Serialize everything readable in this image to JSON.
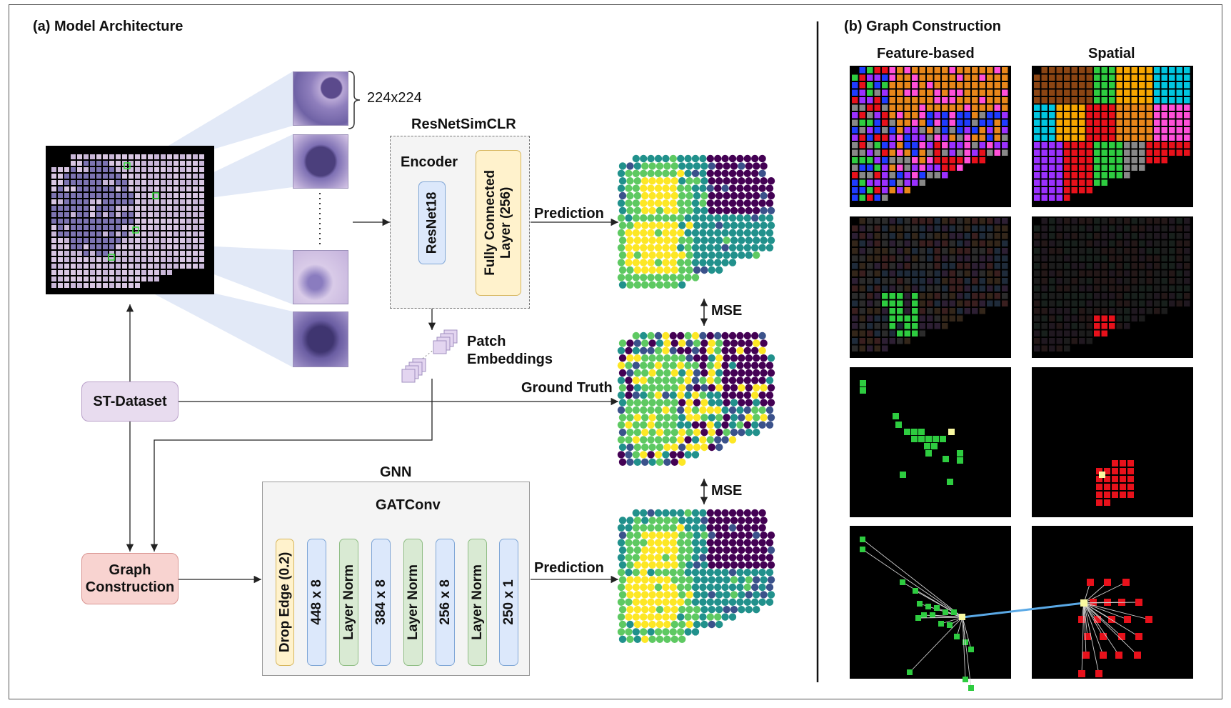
{
  "panel_a": {
    "title": "(a) Model Architecture",
    "patch_size_label": "224x224",
    "resnet_title": "ResNetSimCLR",
    "encoder_label": "Encoder",
    "resnet18_label": "ResNet18",
    "fc_label_line1": "Fully Connected",
    "fc_label_line2": "Layer (256)",
    "prediction_top_label": "Prediction",
    "mse_top_label": "MSE",
    "patch_embeddings_line1": "Patch",
    "patch_embeddings_line2": "Embeddings",
    "ground_truth_label": "Ground Truth",
    "st_dataset_label": "ST-Dataset",
    "graph_construction_line1": "Graph",
    "graph_construction_line2": "Construction",
    "gnn_title": "GNN",
    "gatconv_label": "GATConv",
    "mse_bottom_label": "MSE",
    "prediction_bottom_label": "Prediction",
    "gnn_layers": [
      "Drop Edge (0.2)",
      "448 x 8",
      "Layer Norm",
      "384 x 8",
      "Layer Norm",
      "256 x 8",
      "Layer Norm",
      "250 x 1"
    ]
  },
  "panel_b": {
    "title": "(b)  Graph Construction",
    "col_left": "Feature-based",
    "col_right": "Spatial"
  },
  "colors": {
    "st_dataset_fill": "#e8dcef",
    "graph_construction_fill": "#f8d3d0",
    "resnet_fill": "#dce8fb",
    "fc_fill": "#fff2cc",
    "layernorm_fill": "#d9ead3",
    "viridis_dark": "#440154",
    "viridis_yellow": "#fde725",
    "feature_green": "#2ecc40",
    "spatial_red": "#e8111b"
  }
}
